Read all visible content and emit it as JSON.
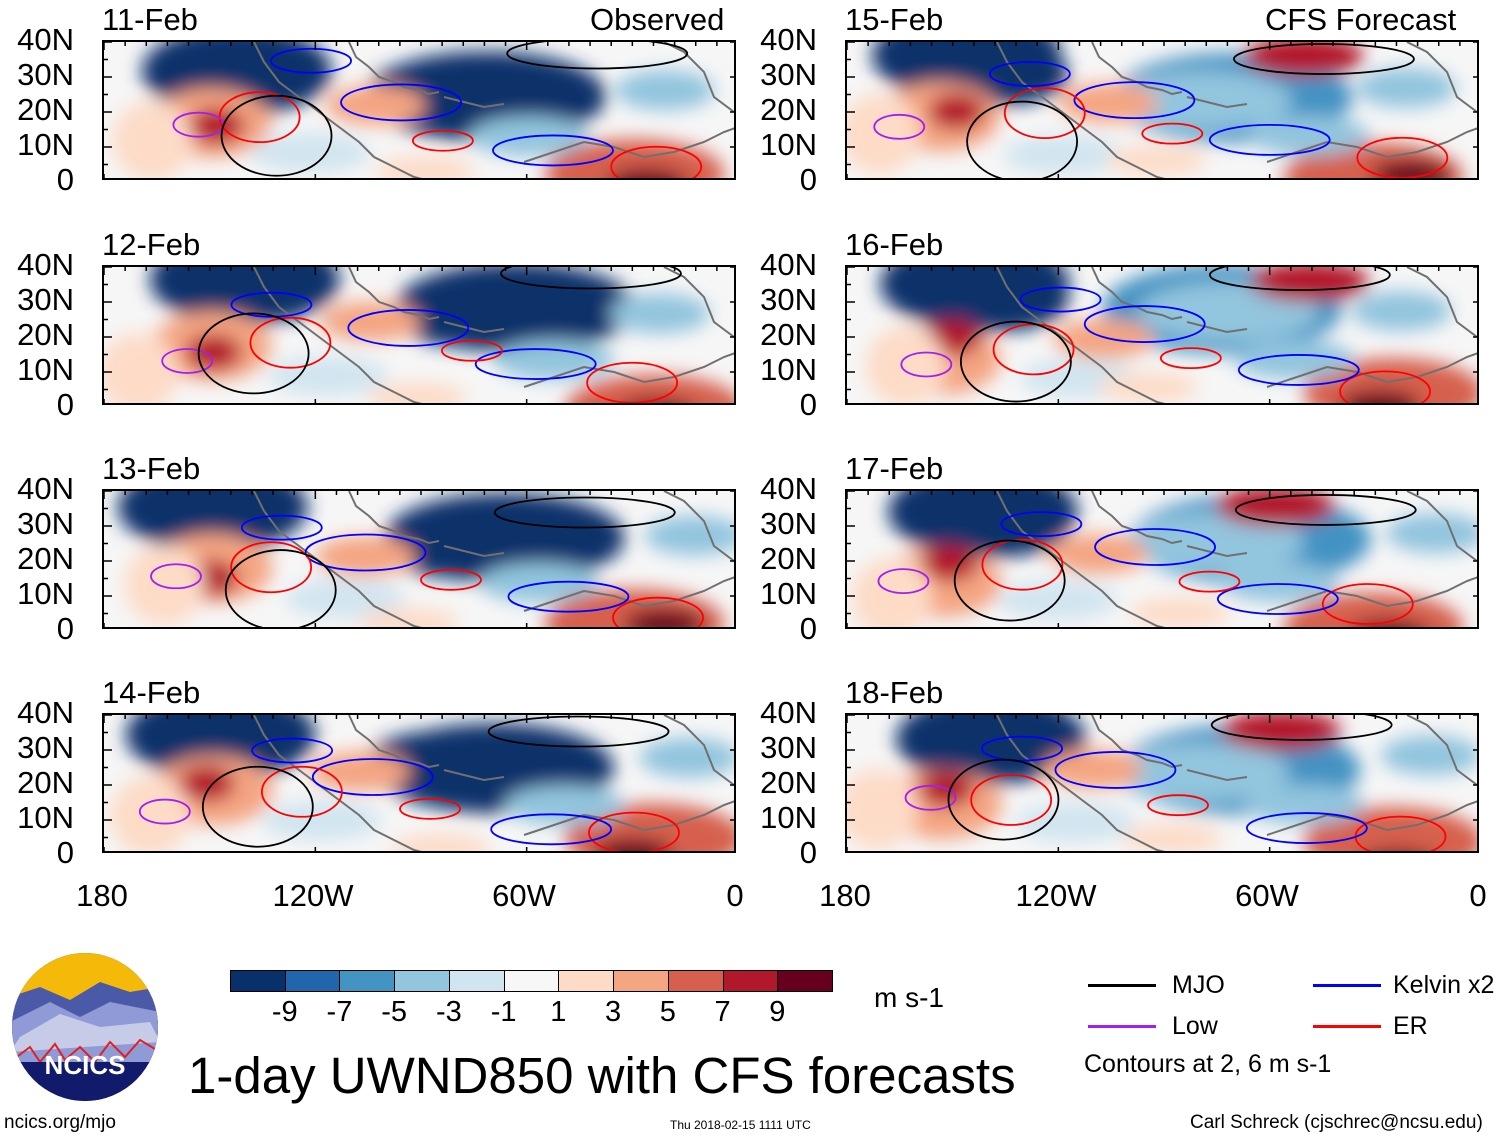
{
  "figure": {
    "title": "1-day UWND850 with CFS forecasts",
    "left_column_label": "Observed",
    "right_column_label": "CFS Forecast",
    "panels_left": [
      {
        "date": "11-Feb"
      },
      {
        "date": "12-Feb"
      },
      {
        "date": "13-Feb"
      },
      {
        "date": "14-Feb"
      }
    ],
    "panels_right": [
      {
        "date": "15-Feb"
      },
      {
        "date": "16-Feb"
      },
      {
        "date": "17-Feb"
      },
      {
        "date": "18-Feb"
      }
    ],
    "y_ticks": [
      "40N",
      "30N",
      "20N",
      "10N",
      "0"
    ],
    "x_ticks": [
      "180",
      "120W",
      "60W",
      "0"
    ]
  },
  "colorbar": {
    "labels": [
      "-9",
      "-7",
      "-5",
      "-3",
      "-1",
      "1",
      "3",
      "5",
      "7",
      "9"
    ],
    "colors": [
      "#08306b",
      "#2166ac",
      "#4393c3",
      "#92c5de",
      "#d1e5f0",
      "#f7f7f7",
      "#fddbc7",
      "#f4a582",
      "#d6604d",
      "#b2182b",
      "#67001f"
    ],
    "units": "m s-1"
  },
  "legend": {
    "items": [
      {
        "label": "MJO",
        "color": "#000000"
      },
      {
        "label": "Kelvin x2",
        "color": "#0000ff"
      },
      {
        "label": "Low",
        "color": "#a020f0"
      },
      {
        "label": "ER",
        "color": "#ff0000"
      }
    ],
    "note": "Contours at 2, 6 m s-1"
  },
  "logo": {
    "text": "NCICS"
  },
  "footer": {
    "url": "ncics.org/mjo",
    "timestamp": "Thu 2018-02-15 1111 UTC",
    "credit": "Carl Schreck (cjschrec@ncsu.edu)"
  }
}
